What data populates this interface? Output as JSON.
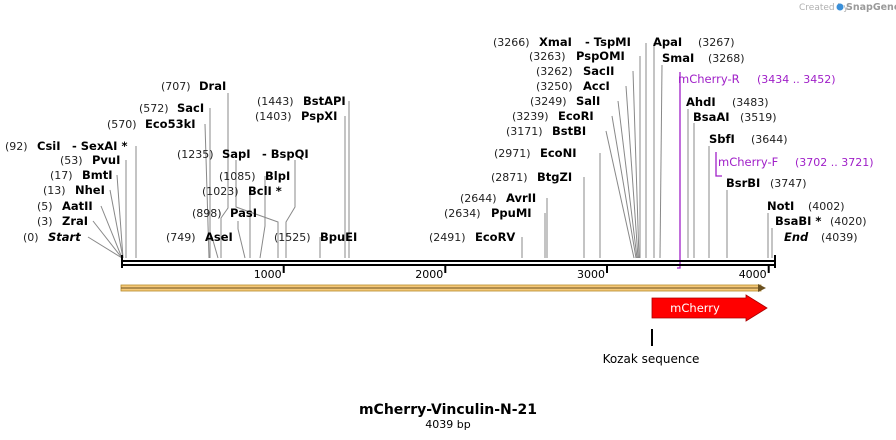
{
  "credit": {
    "prefix": "Created by",
    "brand": "SnapGene"
  },
  "plasmid": {
    "name": "mCherry-Vinculin-N-21",
    "length_label": "4039 bp",
    "length": 4039
  },
  "axis": {
    "ticks": [
      {
        "value": 1000,
        "label": "1000"
      },
      {
        "value": 2000,
        "label": "2000"
      },
      {
        "value": 3000,
        "label": "3000"
      },
      {
        "value": 4000,
        "label": "4000"
      }
    ]
  },
  "sites": {
    "start": {
      "pos": "(0)",
      "name": "Start"
    },
    "zrai": {
      "pos": "(3)",
      "name": "ZraI"
    },
    "aatii": {
      "pos": "(5)",
      "name": "AatII"
    },
    "nhei": {
      "pos": "(13)",
      "name": "NheI"
    },
    "bmti": {
      "pos": "(17)",
      "name": "BmtI"
    },
    "pvui": {
      "pos": "(53)",
      "name": "PvuI"
    },
    "csii": {
      "pos": "(92)",
      "name": "CsiI",
      "alt": "- SexAI *"
    },
    "eco53ki": {
      "pos": "(570)",
      "name": "Eco53kI"
    },
    "saci": {
      "pos": "(572)",
      "name": "SacI"
    },
    "drai": {
      "pos": "(707)",
      "name": "DraI"
    },
    "asei": {
      "pos": "(749)",
      "name": "AseI"
    },
    "pasi": {
      "pos": "(898)",
      "name": "PasI"
    },
    "bcli": {
      "pos": "(1023)",
      "name": "BclI *"
    },
    "blpi": {
      "pos": "(1085)",
      "name": "BlpI"
    },
    "sapi": {
      "pos": "(1235)",
      "name": "SapI",
      "alt": "- BspQI"
    },
    "pspxi": {
      "pos": "(1403)",
      "name": "PspXI"
    },
    "bstapi": {
      "pos": "(1443)",
      "name": "BstAPI"
    },
    "bpuei": {
      "pos": "(1525)",
      "name": "BpuEI"
    },
    "ecorv": {
      "pos": "(2491)",
      "name": "EcoRV"
    },
    "ppumi": {
      "pos": "(2634)",
      "name": "PpuMI"
    },
    "avrii": {
      "pos": "(2644)",
      "name": "AvrII"
    },
    "btgzi": {
      "pos": "(2871)",
      "name": "BtgZI"
    },
    "econi": {
      "pos": "(2971)",
      "name": "EcoNI"
    },
    "bstbi": {
      "pos": "(3171)",
      "name": "BstBI"
    },
    "ecori": {
      "pos": "(3239)",
      "name": "EcoRI"
    },
    "sali": {
      "pos": "(3249)",
      "name": "SalI"
    },
    "acci": {
      "pos": "(3250)",
      "name": "AccI"
    },
    "sacii": {
      "pos": "(3262)",
      "name": "SacII"
    },
    "pspomi": {
      "pos": "(3263)",
      "name": "PspOMI"
    },
    "xmai": {
      "pos": "(3266)",
      "name": "XmaI",
      "alt": "- TspMI"
    },
    "apai": {
      "name": "ApaI",
      "pos": "(3267)"
    },
    "smai": {
      "name": "SmaI",
      "pos": "(3268)"
    },
    "ahdi": {
      "name": "AhdI",
      "pos": "(3483)"
    },
    "bsaai": {
      "name": "BsaAI",
      "pos": "(3519)"
    },
    "sbfi": {
      "name": "SbfI",
      "pos": "(3644)"
    },
    "bsrbi": {
      "name": "BsrBI",
      "pos": "(3747)"
    },
    "noti": {
      "name": "NotI",
      "pos": "(4002)"
    },
    "bsabi": {
      "name": "BsaBI *",
      "pos": "(4020)"
    },
    "end": {
      "name": "End",
      "pos": "(4039)"
    }
  },
  "primers": {
    "mcherry_r": {
      "name": "mCherry-R",
      "range": "(3434 .. 3452)"
    },
    "mcherry_f": {
      "name": "mCherry-F",
      "range": "(3702 .. 3721)"
    }
  },
  "features": {
    "mcherry": {
      "label": "mCherry",
      "color": "#ff0000"
    },
    "kozak": {
      "label": "Kozak sequence"
    },
    "backbone_color": "#f5c878"
  }
}
